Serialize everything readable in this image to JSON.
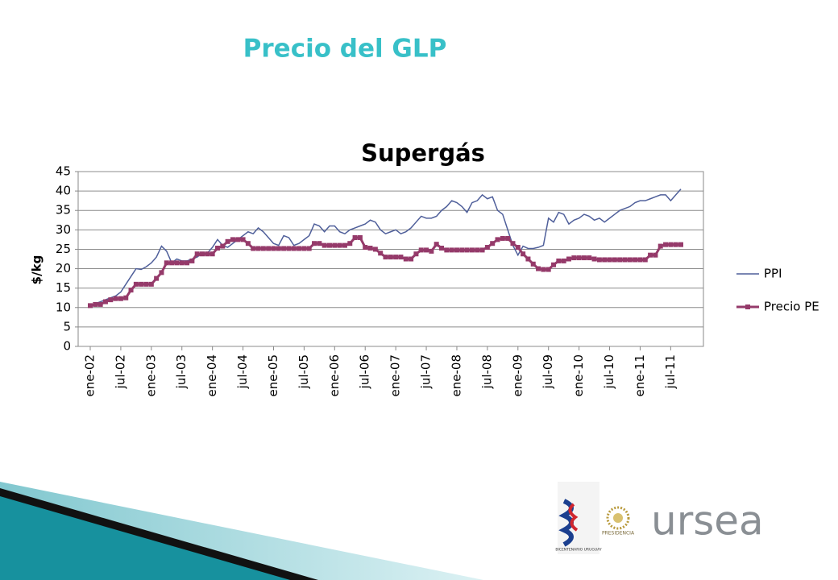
{
  "heading": "Precio del GLP",
  "chart_data": {
    "type": "line",
    "title": "Supergás",
    "y_label": "$/kg",
    "categories": [
      "ene-02",
      null,
      null,
      null,
      null,
      null,
      "jul-02",
      null,
      null,
      null,
      null,
      null,
      "ene-03",
      null,
      null,
      null,
      null,
      null,
      "jul-03",
      null,
      null,
      null,
      null,
      null,
      "ene-04",
      null,
      null,
      null,
      null,
      null,
      "jul-04",
      null,
      null,
      null,
      null,
      null,
      "ene-05",
      null,
      null,
      null,
      null,
      null,
      "jul-05",
      null,
      null,
      null,
      null,
      null,
      "ene-06",
      null,
      null,
      null,
      null,
      null,
      "jul-06",
      null,
      null,
      null,
      null,
      null,
      "ene-07",
      null,
      null,
      null,
      null,
      null,
      "jul-07",
      null,
      null,
      null,
      null,
      null,
      "ene-08",
      null,
      null,
      null,
      null,
      null,
      "jul-08",
      null,
      null,
      null,
      null,
      null,
      "ene-09",
      null,
      null,
      null,
      null,
      null,
      "jul-09",
      null,
      null,
      null,
      null,
      null,
      "ene-10",
      null,
      null,
      null,
      null,
      null,
      "jul-10",
      null,
      null,
      null,
      null,
      null,
      "ene-11",
      null,
      null,
      null,
      null,
      null,
      "jul-11",
      null,
      null
    ],
    "series": [
      {
        "name": "PPI",
        "color": "#4f5f9a",
        "marker": false,
        "values": [
          10.5,
          11,
          11.5,
          12,
          12.5,
          13,
          14,
          16,
          18,
          20,
          19.8,
          20.5,
          21.5,
          23,
          25.8,
          24.5,
          21.5,
          22.5,
          22,
          22,
          22.5,
          23,
          24,
          24,
          25.5,
          27.5,
          26,
          25.5,
          26.5,
          27.5,
          28.5,
          29.5,
          29,
          30.5,
          29.5,
          28,
          26.5,
          26,
          28.5,
          28,
          26,
          26.5,
          27.5,
          28.5,
          31.5,
          31,
          29.5,
          31,
          31,
          29.5,
          29,
          30,
          30.5,
          31,
          31.5,
          32.5,
          32,
          30,
          29,
          29.5,
          30,
          29,
          29.5,
          30.5,
          32,
          33.5,
          33,
          33,
          33.5,
          35,
          36,
          37.5,
          37,
          36,
          34.5,
          37,
          37.5,
          39,
          38,
          38.5,
          35,
          34,
          30,
          26,
          23.5,
          25.8,
          25.2,
          25.2,
          25.5,
          26,
          33,
          32,
          34.5,
          34,
          31.5,
          32.5,
          33,
          34,
          33.5,
          32.5,
          33,
          32,
          33,
          34,
          35,
          35.5,
          36,
          37,
          37.5,
          37.5,
          38,
          38.5,
          39,
          39,
          37.5,
          39,
          40.5
        ]
      },
      {
        "name": "Precio PE",
        "color": "#953a6a",
        "marker": true,
        "values": [
          10.5,
          10.8,
          10.8,
          11.5,
          12,
          12.3,
          12.3,
          12.5,
          14.5,
          16,
          16,
          16,
          16,
          17.5,
          19,
          21.5,
          21.5,
          21.5,
          21.5,
          21.5,
          22,
          23.8,
          23.8,
          23.8,
          23.8,
          25.3,
          25.8,
          27,
          27.5,
          27.5,
          27.5,
          26.5,
          25.2,
          25.2,
          25.2,
          25.2,
          25.2,
          25.2,
          25.2,
          25.2,
          25.2,
          25.2,
          25.2,
          25.2,
          26.5,
          26.5,
          26,
          26,
          26,
          26,
          26,
          26.5,
          28,
          28,
          25.5,
          25.3,
          25,
          24,
          23,
          23,
          23,
          23,
          22.5,
          22.5,
          23.8,
          24.8,
          24.8,
          24.5,
          26.3,
          25.3,
          24.8,
          24.8,
          24.8,
          24.8,
          24.8,
          24.8,
          24.8,
          24.8,
          25.5,
          26.5,
          27.5,
          27.8,
          27.8,
          26.5,
          25.5,
          23.8,
          22.5,
          21.2,
          20,
          19.8,
          19.8,
          21,
          22,
          22,
          22.5,
          22.8,
          22.8,
          22.8,
          22.8,
          22.5,
          22.3,
          22.3,
          22.3,
          22.3,
          22.3,
          22.3,
          22.3,
          22.3,
          22.3,
          22.3,
          23.5,
          23.5,
          25.8,
          26.2,
          26.2,
          26.2,
          26.2
        ]
      }
    ],
    "ylim": [
      0,
      45
    ],
    "yticks": [
      0,
      5,
      10,
      15,
      20,
      25,
      30,
      35,
      40,
      45
    ],
    "grid": true,
    "legend": "right"
  },
  "logos": {
    "bicentenario": "BICENTENARIO URUGUAY",
    "presidencia": "PRESIDENCIA",
    "ursea": "ursea"
  }
}
